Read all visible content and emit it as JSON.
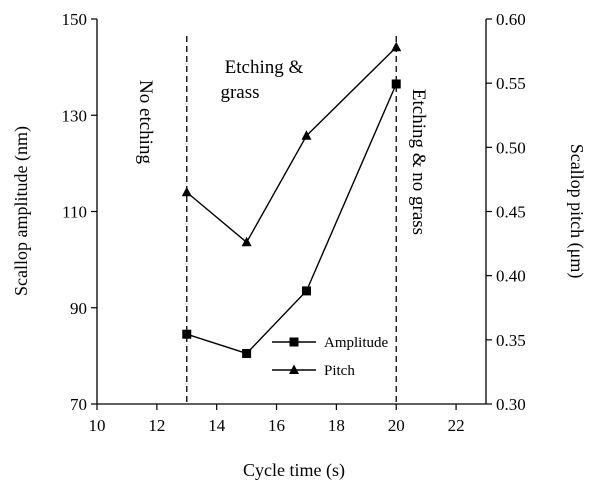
{
  "chart_data": {
    "type": "line",
    "title": "",
    "xlabel": "Cycle time (s)",
    "ylabel_left": "Scallop amplitude (nm)",
    "ylabel_right": "Scallop pitch (μm)",
    "xlim": [
      10,
      23
    ],
    "xticks": [
      10,
      12,
      14,
      16,
      18,
      20,
      22
    ],
    "ylim_left": [
      70,
      150
    ],
    "yticks_left": [
      70,
      90,
      110,
      130,
      150
    ],
    "ylim_right": [
      0.3,
      0.6
    ],
    "yticks_right": [
      "0.30",
      "0.35",
      "0.40",
      "0.45",
      "0.50",
      "0.55",
      "0.60"
    ],
    "grid": false,
    "legend_position": "lower-right",
    "series": [
      {
        "name": "Amplitude",
        "axis": "left",
        "marker": "square",
        "x": [
          13,
          15,
          17,
          20
        ],
        "y": [
          84.5,
          80.5,
          93.5,
          136.5
        ]
      },
      {
        "name": "Pitch",
        "axis": "right",
        "marker": "triangle",
        "x": [
          13,
          15,
          17,
          20
        ],
        "y": [
          0.465,
          0.426,
          0.509,
          0.578
        ]
      }
    ],
    "vlines": [
      13,
      20
    ],
    "annotations": [
      {
        "text": "No etching"
      },
      {
        "text": "Etching &"
      },
      {
        "text": "grass"
      },
      {
        "text": "Etching & no grass"
      }
    ]
  }
}
